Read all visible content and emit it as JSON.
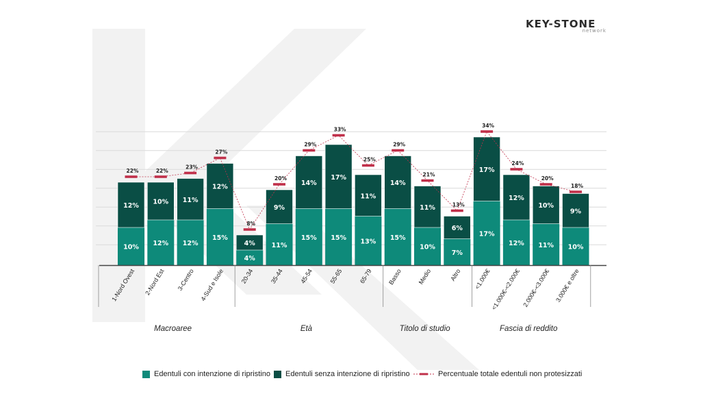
{
  "logo": {
    "main": "KEY-STONE",
    "sub": "network"
  },
  "colors": {
    "with_intention": "#0e8a7a",
    "without_intention": "#0a4e45",
    "total_line": "#c0304a",
    "grid": "#d9d9d9",
    "watermark": "#f2f2f2"
  },
  "legend": {
    "with_intention": "Edentuli con intenzione di ripristino",
    "without_intention": "Edentuli senza intenzione di ripristino",
    "total": "Percentuale totale edentuli non protesizzati"
  },
  "chart_data": {
    "type": "bar",
    "stacked": true,
    "title": "",
    "categories": [
      "1-Nord Ovest",
      "2-Nord Est",
      "3-Centro",
      "4-Sud e Isole",
      "20-34",
      "35-44",
      "45-54",
      "55-65",
      "65-79",
      "Basso",
      "Medio",
      "Altro",
      "<1.000€",
      "<1.000€-<2.000€",
      "2.000€-<3.000€",
      "3.000€ e oltre"
    ],
    "groups": [
      {
        "name": "Macroaree",
        "start": 0,
        "count": 4
      },
      {
        "name": "Età",
        "start": 4,
        "count": 5
      },
      {
        "name": "Titolo di studio",
        "start": 9,
        "count": 3
      },
      {
        "name": "Fascia di reddito",
        "start": 12,
        "count": 4
      }
    ],
    "series": [
      {
        "name": "Edentuli con intenzione di ripristino",
        "values": [
          10,
          12,
          12,
          15,
          4,
          11,
          15,
          15,
          13,
          15,
          10,
          7,
          17,
          12,
          11,
          10
        ]
      },
      {
        "name": "Edentuli senza intenzione di ripristino",
        "values": [
          12,
          10,
          11,
          12,
          4,
          9,
          14,
          17,
          11,
          14,
          11,
          6,
          17,
          12,
          10,
          9
        ]
      }
    ],
    "line": {
      "name": "Percentuale totale edentuli non protesizzati",
      "values": [
        22,
        22,
        23,
        27,
        8,
        20,
        29,
        33,
        25,
        29,
        21,
        13,
        34,
        24,
        20,
        18
      ]
    },
    "ylim": [
      0,
      35
    ],
    "grid": true,
    "value_suffix": "%"
  }
}
